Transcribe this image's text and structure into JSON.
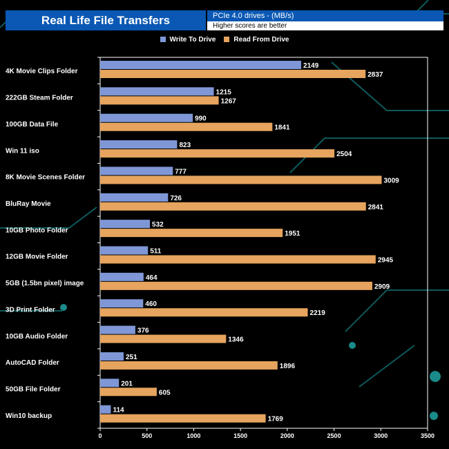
{
  "header": {
    "title": "Real Life File Transfers",
    "subtitle": "PCIe 4.0 drives - (MB/s)",
    "note": "Higher scores are better"
  },
  "chart_data": {
    "type": "bar",
    "orientation": "horizontal",
    "title": "Real Life File Transfers",
    "xlim": [
      0,
      3500
    ],
    "xticks": [
      "0",
      "500",
      "1000",
      "1500",
      "2000",
      "2500",
      "3000",
      "3500"
    ],
    "legend_position": "top",
    "categories": [
      "4K Movie Clips Folder",
      "222GB Steam Folder",
      "100GB Data File",
      "Win 11 iso",
      "8K Movie Scenes Folder",
      "BluRay Movie",
      "10GB Photo Folder",
      "12GB Movie Folder",
      "5GB (1.5bn pixel) image",
      "3D Print Folder",
      "10GB Audio Folder",
      "AutoCAD Folder",
      "50GB File Folder",
      "Win10 backup"
    ],
    "series": [
      {
        "name": "Write To  Drive",
        "color": "#7f97d6",
        "values": [
          2149,
          1215,
          990,
          823,
          777,
          726,
          532,
          511,
          464,
          460,
          376,
          251,
          201,
          114
        ]
      },
      {
        "name": "Read From  Drive",
        "color": "#e6a45e",
        "values": [
          2837,
          1267,
          1841,
          2504,
          3009,
          2841,
          1951,
          2945,
          2909,
          2219,
          1346,
          1896,
          605,
          1769
        ]
      }
    ]
  }
}
